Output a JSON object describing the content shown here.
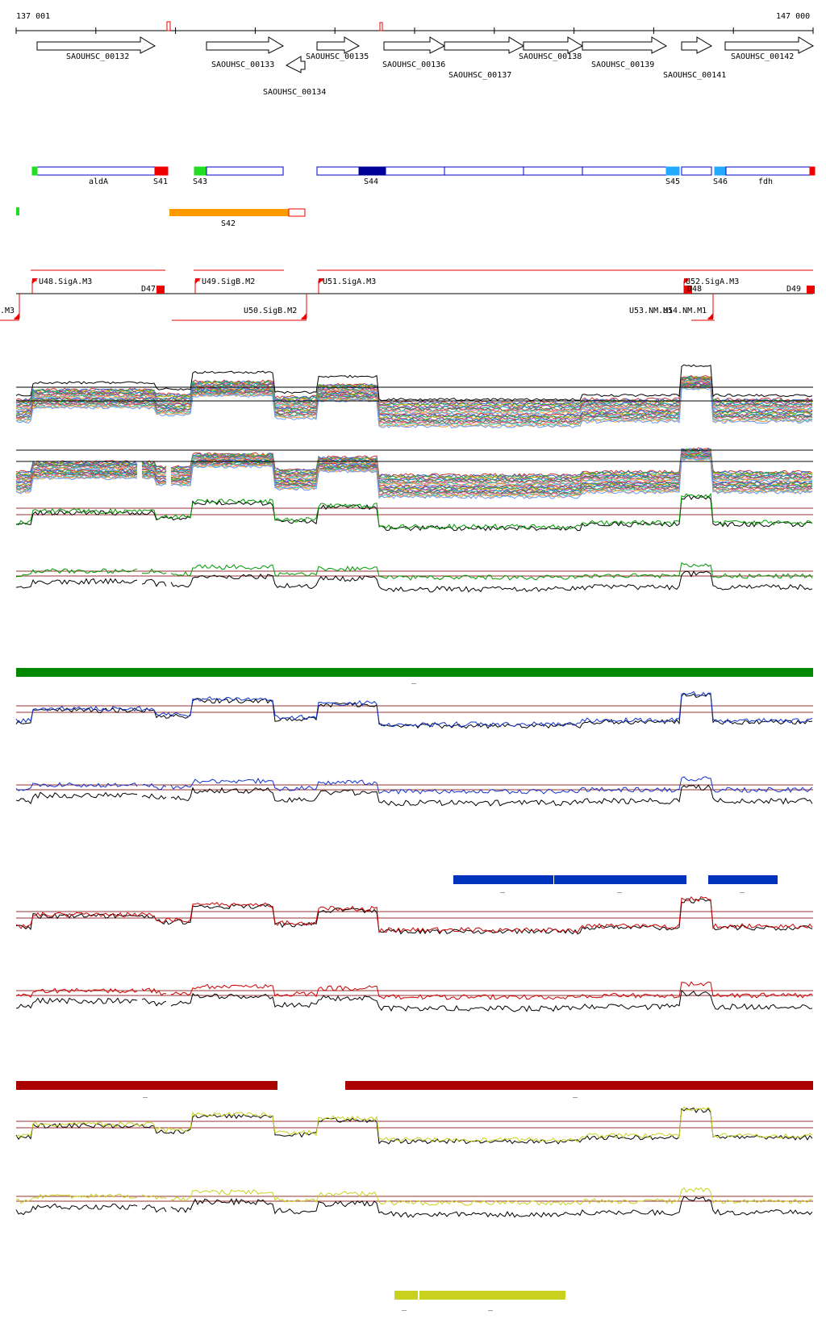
{
  "axis": {
    "start_label": "137 001",
    "end_label": "147 000"
  },
  "genes": [
    {
      "label": "SAOUHSC_00132",
      "strand": "+"
    },
    {
      "label": "SAOUHSC_00133",
      "strand": "+"
    },
    {
      "label": "SAOUHSC_00134",
      "strand": "-"
    },
    {
      "label": "SAOUHSC_00135",
      "strand": "+"
    },
    {
      "label": "SAOUHSC_00136",
      "strand": "+"
    },
    {
      "label": "SAOUHSC_00137",
      "strand": "+"
    },
    {
      "label": "SAOUHSC_00138",
      "strand": "+"
    },
    {
      "label": "SAOUHSC_00139",
      "strand": "+"
    },
    {
      "label": "SAOUHSC_00141",
      "strand": "+"
    },
    {
      "label": "SAOUHSC_00142",
      "strand": "+"
    }
  ],
  "segments": [
    {
      "label": "aldA"
    },
    {
      "label": "S41"
    },
    {
      "label": "S43"
    },
    {
      "label": "S44"
    },
    {
      "label": "S45"
    },
    {
      "label": "S46"
    },
    {
      "label": "fdh"
    }
  ],
  "antisense_segment": {
    "label": "S42",
    "color": "#ff9900"
  },
  "promoters": [
    {
      "label": "U48.SigA.M3"
    },
    {
      "label": "D47"
    },
    {
      "label": "U49.SigB.M2"
    },
    {
      "label": "U51.SigA.M3"
    },
    {
      "label": "U52.SigA.M3"
    },
    {
      "label": "D48"
    },
    {
      "label": "D49"
    },
    {
      "label": ".M3"
    },
    {
      "label": "U50.SigB.M2"
    },
    {
      "label": "U53.NM.M1"
    },
    {
      "label": "U54.NM.M1"
    }
  ],
  "condition_bars": [
    {
      "color": "#008800",
      "label": "_"
    },
    {
      "color": "#0033bb",
      "label": "_"
    },
    {
      "color": "#0033bb",
      "label": "_"
    },
    {
      "color": "#0033bb",
      "label": "_"
    },
    {
      "color": "#aa0000",
      "label": "_"
    },
    {
      "color": "#aa0000",
      "label": "_"
    },
    {
      "color": "#c8d21e",
      "label": "_"
    },
    {
      "color": "#c8d21e",
      "label": "_"
    }
  ],
  "colors": {
    "gene_outline": "#000000",
    "segment_blue": "#0000cc",
    "segment_darkblue": "#000099",
    "segment_lightblue": "#22aaff",
    "red": "#ee0000",
    "green": "#22dd22",
    "orange": "#ff9900",
    "track_green": "#009900",
    "track_blue": "#1133cc",
    "track_red": "#cc0000",
    "track_yellow": "#c8d21e",
    "guide_line": "#993333"
  }
}
